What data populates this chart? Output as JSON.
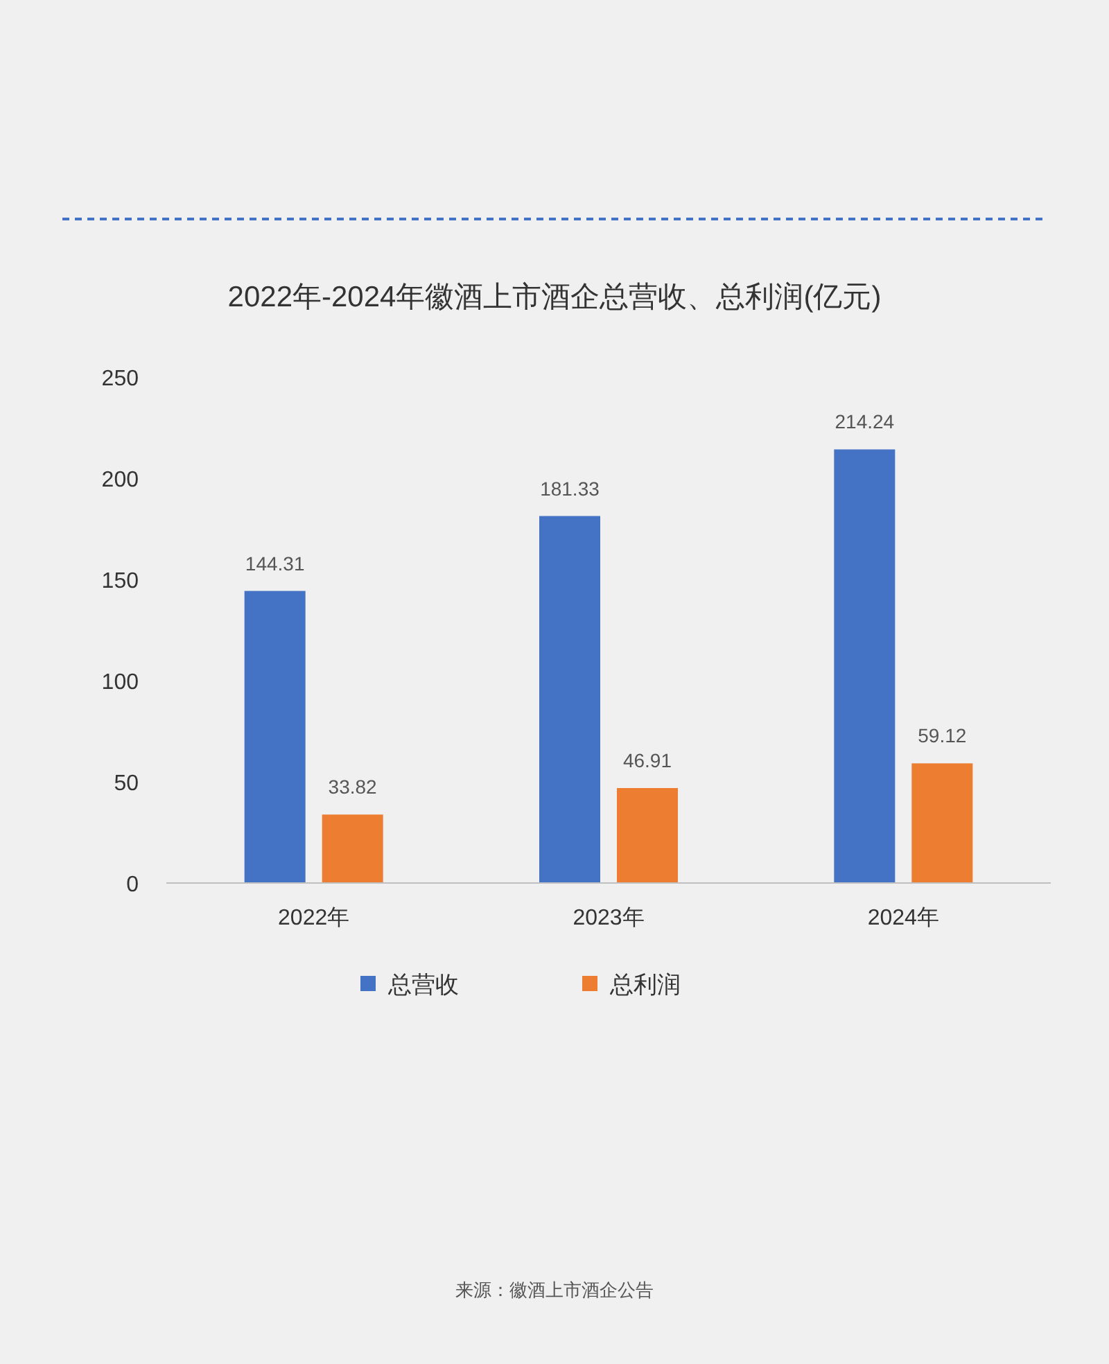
{
  "chart_data": {
    "type": "bar",
    "title": "2022年-2024年徽酒上市酒企总营收、总利润(亿元)",
    "categories": [
      "2022年",
      "2023年",
      "2024年"
    ],
    "series": [
      {
        "name": "总营收",
        "color": "#4472c4",
        "values": [
          144.31,
          181.33,
          214.24
        ]
      },
      {
        "name": "总利润",
        "color": "#ed7d31",
        "values": [
          33.82,
          46.91,
          59.12
        ]
      }
    ],
    "ylim": [
      0,
      250
    ],
    "yticks": [
      0,
      50,
      100,
      150,
      200,
      250
    ],
    "grid": false,
    "legend": "bottom",
    "data_labels": true,
    "annotations": [
      "来源：徽酒上市酒企公告"
    ]
  }
}
